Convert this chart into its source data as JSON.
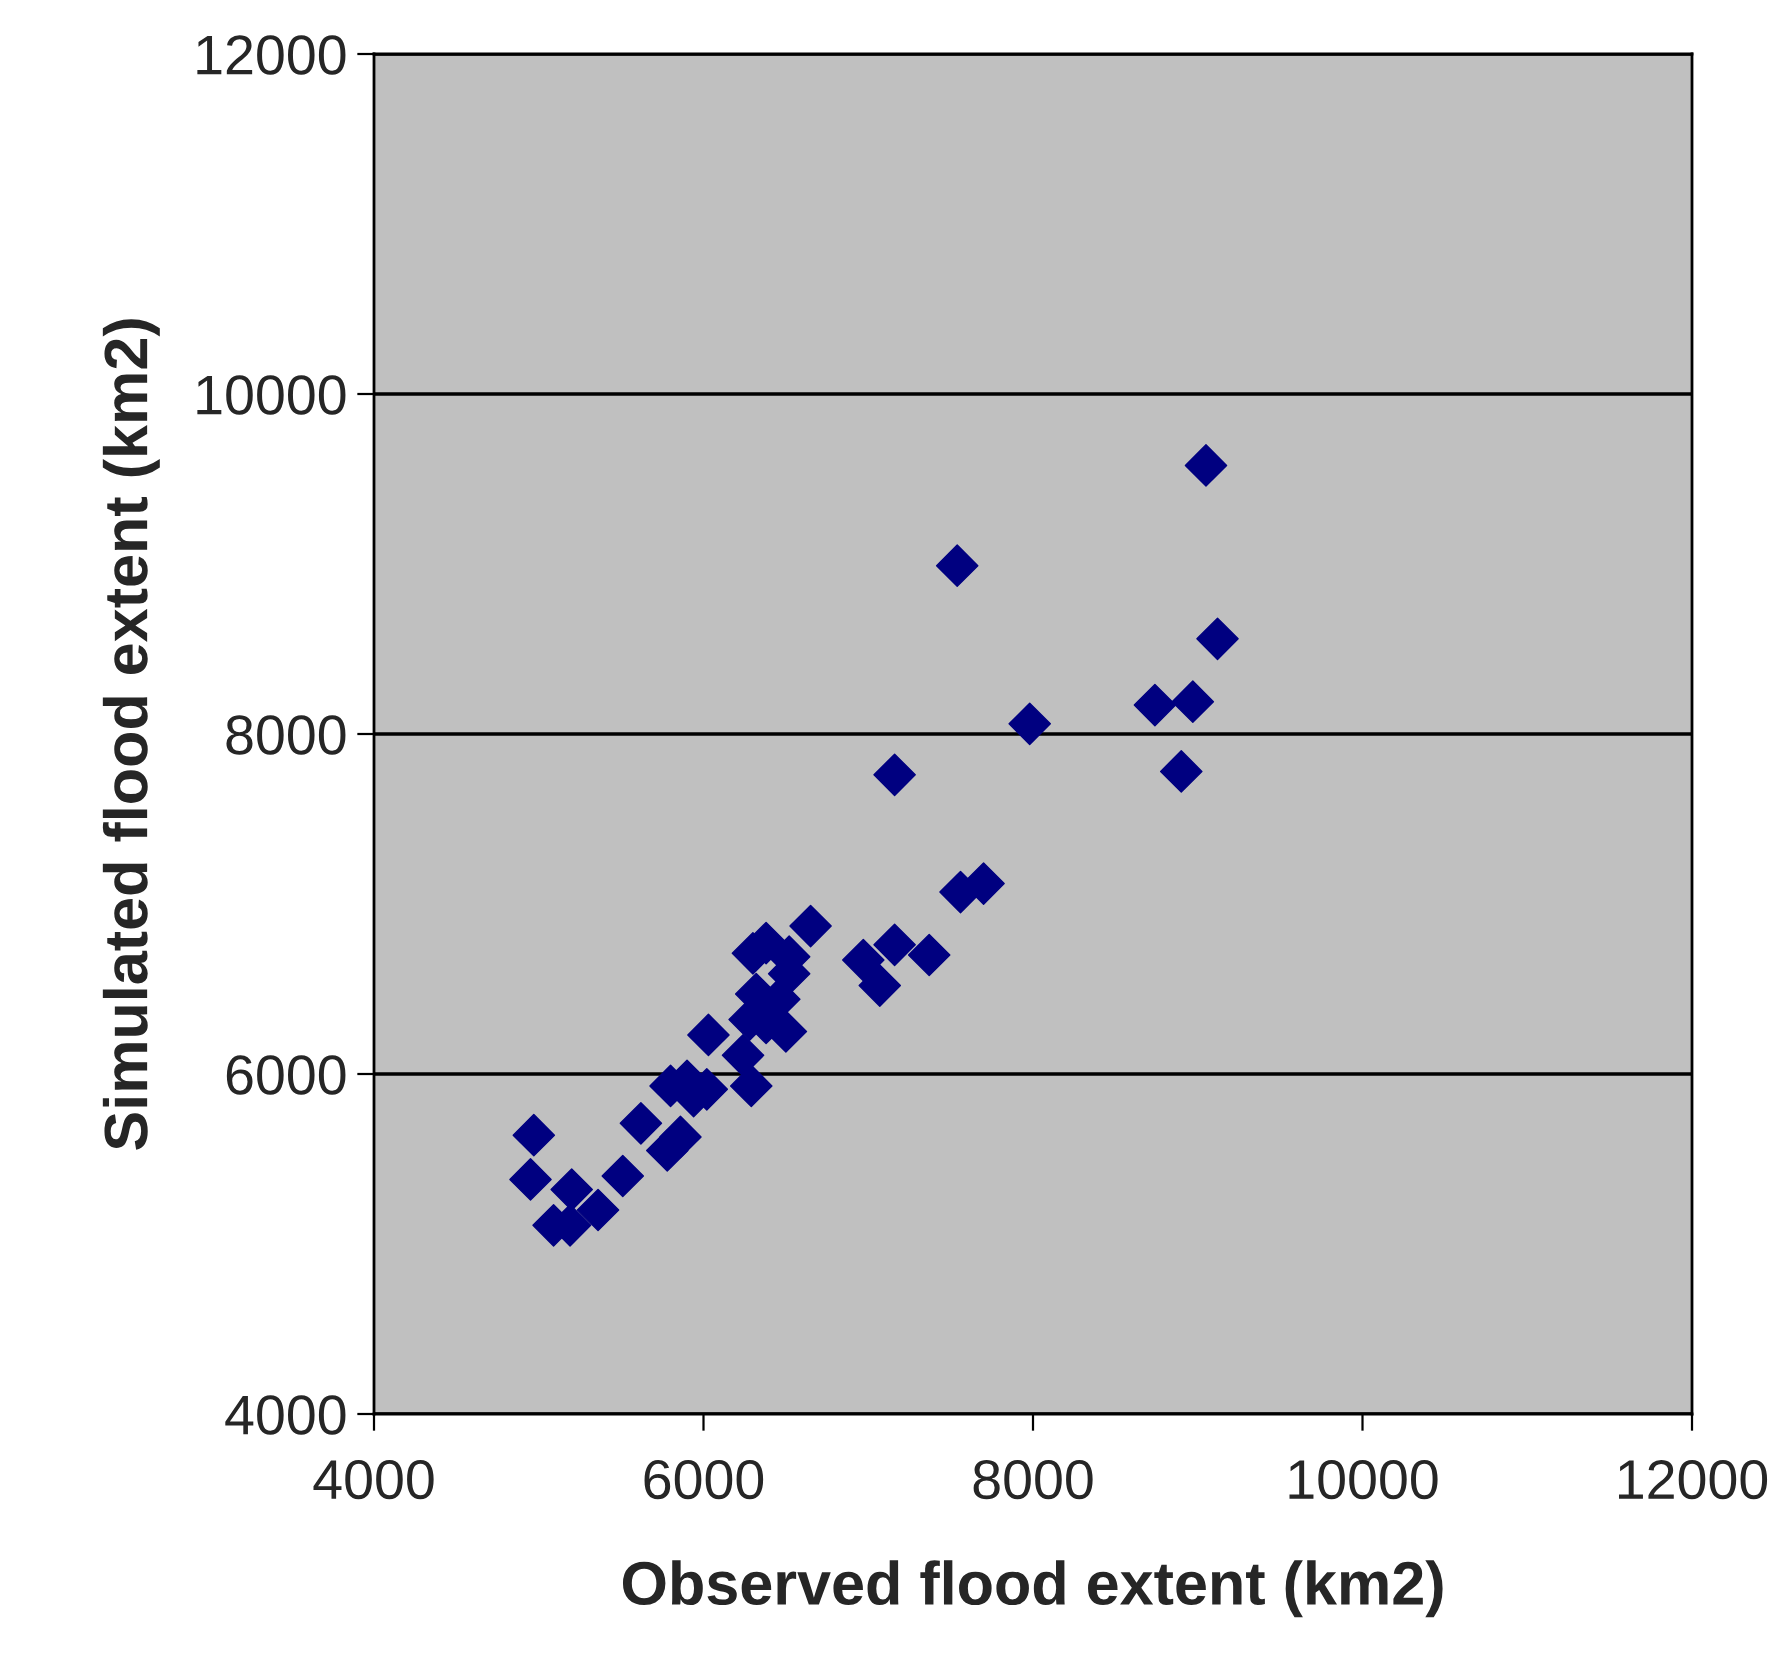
{
  "chart_data": {
    "type": "scatter",
    "xlabel": "Observed flood extent (km2)",
    "ylabel": "Simulated flood extent (km2)",
    "xlim": [
      4000,
      12000
    ],
    "xticks": [
      4000,
      6000,
      8000,
      10000,
      12000
    ],
    "ylim": [
      4000,
      12000
    ],
    "yticks": [
      4000,
      6000,
      8000,
      10000,
      12000
    ],
    "grid": "y",
    "marker": "diamond",
    "legend": false,
    "series": [
      {
        "color": "#000080",
        "x": [
          4970,
          4950,
          5200,
          5360,
          5090,
          5190,
          5510,
          5620,
          5780,
          5860,
          5780,
          5800,
          5900,
          6020,
          5940,
          6030,
          6240,
          6290,
          6280,
          6380,
          6500,
          6320,
          6400,
          6460,
          6300,
          6380,
          6520,
          6520,
          6650,
          6970,
          7070,
          7160,
          7370,
          7560,
          7700,
          7160,
          7980,
          7540,
          8740,
          8970,
          8900,
          9120,
          9050
        ],
        "values": [
          5640,
          5380,
          5320,
          5200,
          5110,
          5110,
          5400,
          5710,
          null,
          5630,
          5550,
          5930,
          5960,
          5910,
          5870,
          6230,
          6110,
          5930,
          6320,
          6300,
          6250,
          6470,
          null,
          6440,
          6710,
          6770,
          6690,
          6590,
          6870,
          6670,
          6520,
          6760,
          6700,
          7070,
          7120,
          7760,
          8060,
          8990,
          8170,
          8190,
          7780,
          8560,
          9580
        ]
      }
    ]
  }
}
